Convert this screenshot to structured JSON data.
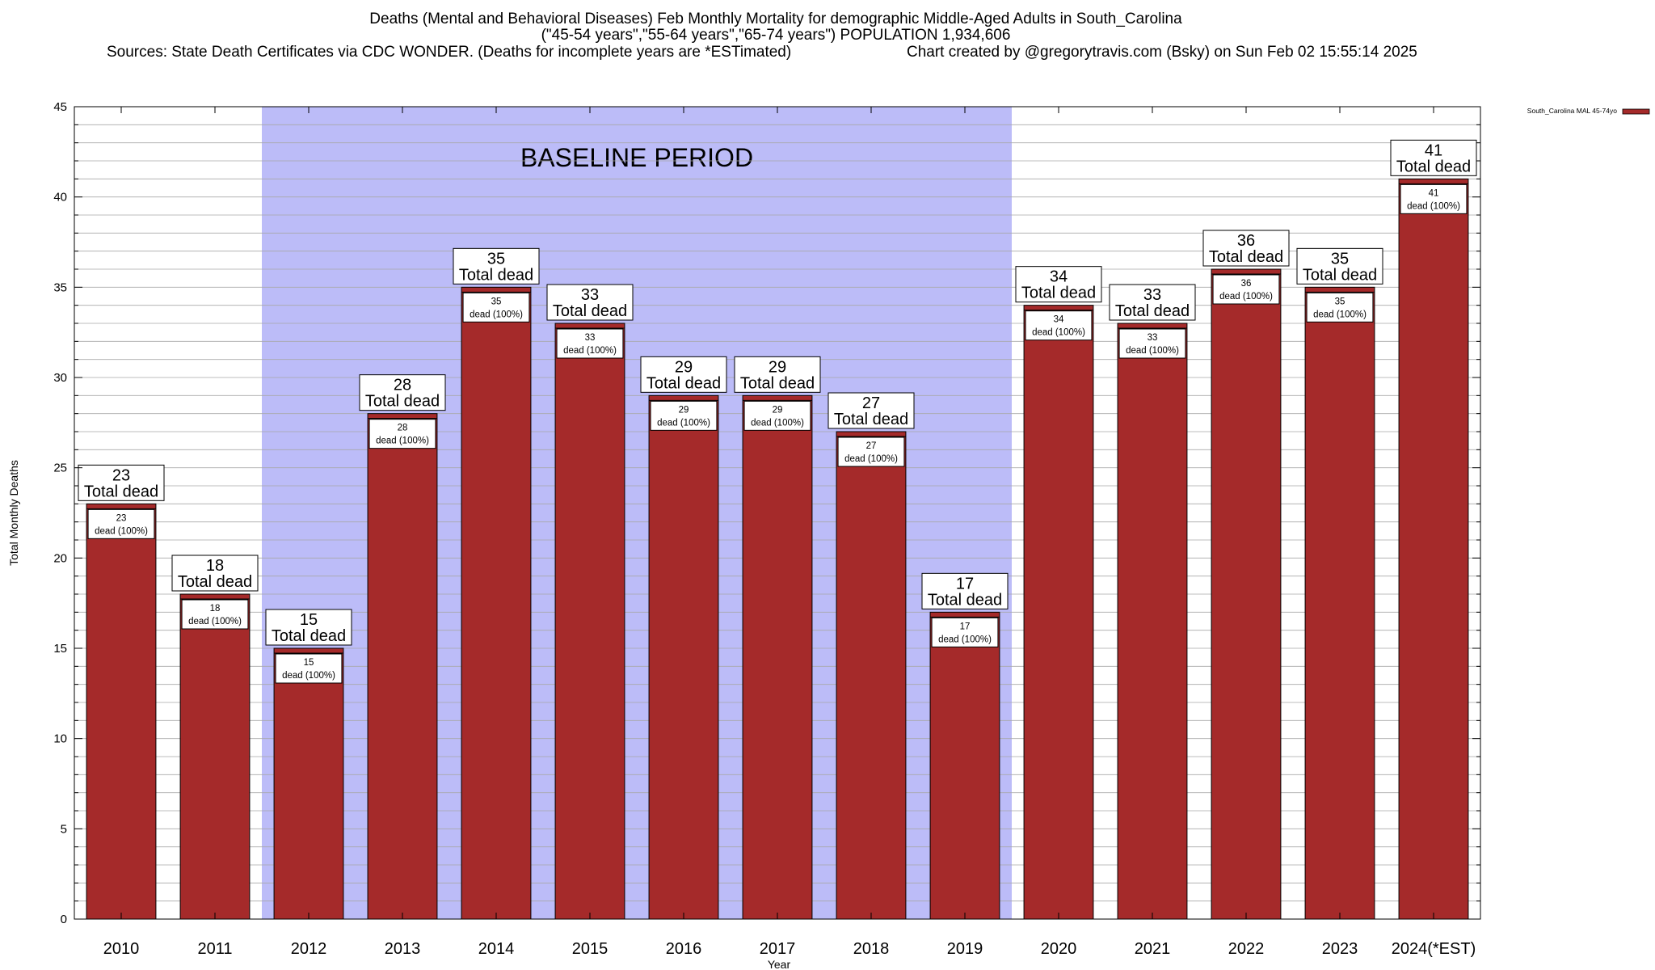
{
  "header": {
    "title_line1": "Deaths (Mental and Behavioral Diseases) Feb Monthly Mortality for demographic Middle-Aged Adults in South_Carolina",
    "title_line2": "(\"45-54 years\",\"55-64 years\",\"65-74 years\") POPULATION 1,934,606",
    "sources": "Sources: State Death Certificates via CDC WONDER. (Deaths for incomplete years are *ESTimated)",
    "credit": "Chart created by @gregorytravis.com (Bsky) on Sun Feb 02 15:55:14 2025"
  },
  "chart_data": {
    "type": "bar",
    "categories": [
      "2010",
      "2011",
      "2012",
      "2013",
      "2014",
      "2015",
      "2016",
      "2017",
      "2018",
      "2019",
      "2020",
      "2021",
      "2022",
      "2023",
      "2024(*EST)"
    ],
    "series": [
      {
        "name": "South_Carolina MAL 45-74yo",
        "values": [
          23,
          18,
          15,
          28,
          35,
          33,
          29,
          29,
          27,
          17,
          34,
          33,
          36,
          35,
          41
        ]
      }
    ],
    "total_label": "Total dead",
    "inner_label": "dead (100%)",
    "xlabel": "Year",
    "ylabel": "Total Monthly Deaths",
    "ylim": [
      0,
      45
    ],
    "yticks": [
      0,
      5,
      10,
      15,
      20,
      25,
      30,
      35,
      40,
      45
    ],
    "minor_tick_step": 1,
    "grid": true,
    "legend_position": "top-right",
    "baseline": {
      "label": "BASELINE PERIOD",
      "start": "2012",
      "end": "2019",
      "color": "#bcbcf8"
    },
    "bar_color": "#a52a2a"
  }
}
